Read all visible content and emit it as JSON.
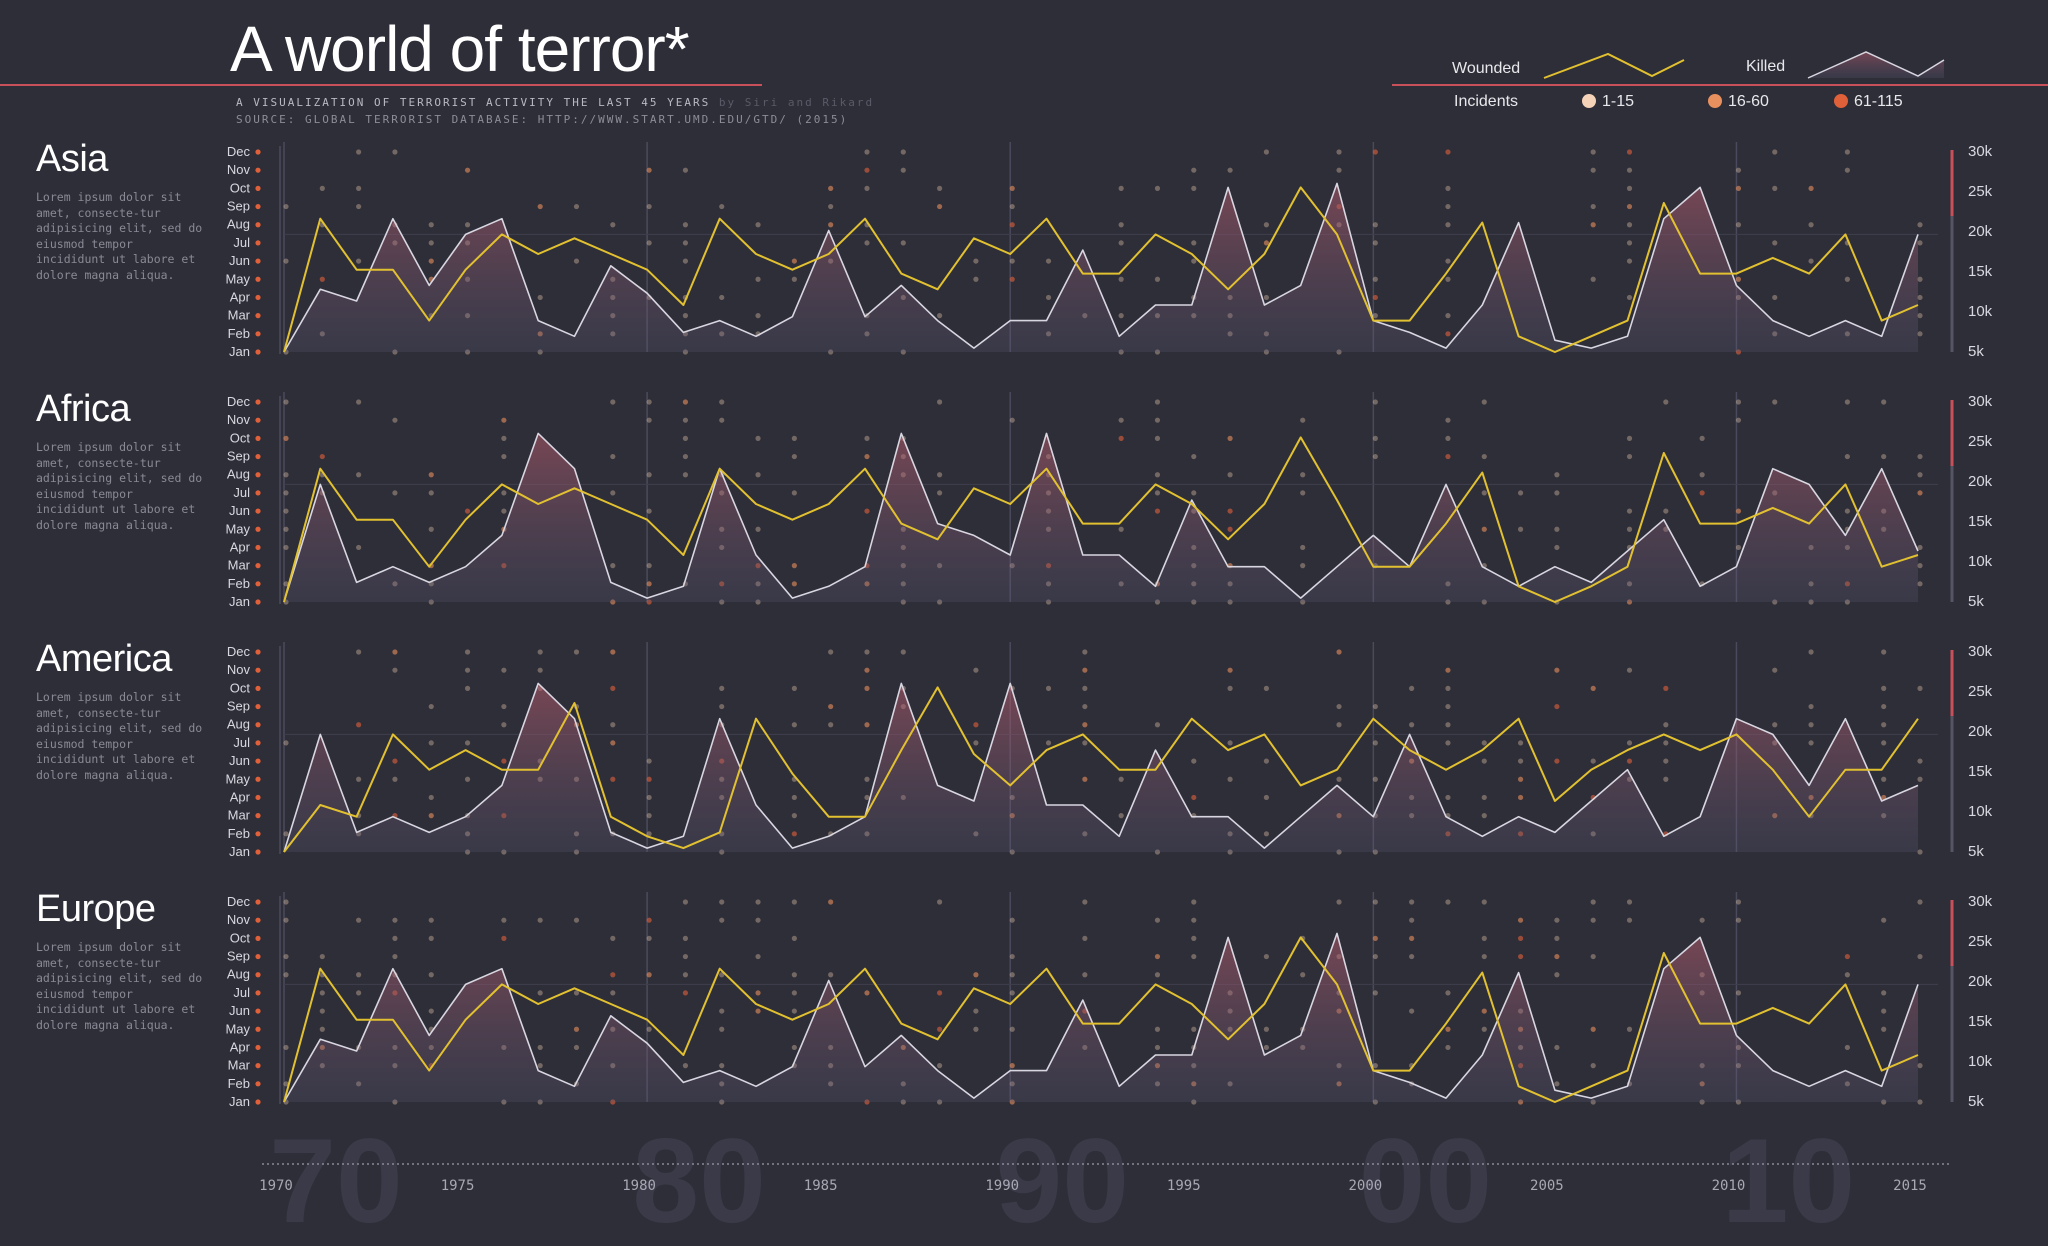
{
  "header": {
    "title": "A world of terror*",
    "subtitle": "A VISUALIZATION OF TERRORIST ACTIVITY THE LAST 45 YEARS",
    "credit": "by Siri and Rikard",
    "source": "SOURCE: GLOBAL TERRORIST DATABASE: HTTP://WWW.START.UMD.EDU/GTD/ (2015)"
  },
  "legend": {
    "wounded_label": "Wounded",
    "killed_label": "Killed",
    "incidents_label": "Incidents",
    "bins": [
      {
        "label": "1-15",
        "color": "#f5d3b8"
      },
      {
        "label": "16-60",
        "color": "#e8905e"
      },
      {
        "label": "61-115",
        "color": "#e0603a"
      }
    ]
  },
  "colors": {
    "background": "#2e2e38",
    "accent_red": "#c8505a",
    "wounded_line": "#e2c130",
    "killed_line": "#d8d6e0"
  },
  "chart_data": {
    "type": "line",
    "x_ticks": [
      1970,
      1975,
      1980,
      1985,
      1990,
      1995,
      2000,
      2005,
      2010,
      2015
    ],
    "decade_watermarks": [
      "70",
      "80",
      "90",
      "00",
      "10"
    ],
    "months": [
      "Jan",
      "Feb",
      "Mar",
      "Apr",
      "May",
      "Jun",
      "Jul",
      "Aug",
      "Sep",
      "Oct",
      "Nov",
      "Dec"
    ],
    "y_ticks": [
      "5k",
      "10k",
      "15k",
      "20k",
      "25k",
      "30k"
    ],
    "ylim": [
      5000,
      30000
    ],
    "xlim": [
      1970,
      2015
    ],
    "regions": [
      {
        "name": "Asia",
        "description": "Lorem ipsum dolor sit amet, consecte-tur adipisicing elit, sed do eiusmod tempor incididunt ut labore et dolore magna aliqua.",
        "years": [
          1970,
          1971,
          1972,
          1973,
          1974,
          1975,
          1976,
          1977,
          1978,
          1979,
          1980,
          1981,
          1982,
          1983,
          1984,
          1985,
          1986,
          1987,
          1988,
          1989,
          1990,
          1991,
          1992,
          1993,
          1994,
          1995,
          1996,
          1997,
          1998,
          1999,
          2000,
          2001,
          2002,
          2003,
          2004,
          2005,
          2006,
          2007,
          2008,
          2009,
          2010,
          2011,
          2012,
          2013,
          2014,
          2015
        ],
        "killed": [
          5000,
          13000,
          11500,
          22000,
          13500,
          20000,
          22000,
          9000,
          7000,
          16000,
          12500,
          7500,
          9000,
          7000,
          9500,
          20500,
          9500,
          13500,
          9000,
          5500,
          9000,
          9000,
          18000,
          7000,
          11000,
          11000,
          26000,
          11000,
          13500,
          26500,
          9000,
          7500,
          5500,
          11000,
          21500,
          6500,
          5500,
          7000,
          22000,
          26000,
          13500,
          9000,
          7000,
          9000,
          7000,
          20000
        ],
        "wounded": [
          5000,
          22000,
          15500,
          15500,
          9000,
          15500,
          20000,
          17500,
          19500,
          17500,
          15500,
          11000,
          22000,
          17500,
          15500,
          17500,
          22000,
          15000,
          13000,
          19500,
          17500,
          22000,
          15000,
          15000,
          20000,
          17500,
          13000,
          17500,
          26000,
          20000,
          9000,
          9000,
          15000,
          21500,
          7000,
          5000,
          7000,
          9000,
          24000,
          15000,
          15000,
          17000,
          15000,
          20000,
          9000,
          11000
        ]
      },
      {
        "name": "Africa",
        "description": "Lorem ipsum dolor sit amet, consecte-tur adipisicing elit, sed do eiusmod tempor incididunt ut labore et dolore magna aliqua.",
        "years": [
          1970,
          1971,
          1972,
          1973,
          1974,
          1975,
          1976,
          1977,
          1978,
          1979,
          1980,
          1981,
          1982,
          1983,
          1984,
          1985,
          1986,
          1987,
          1988,
          1989,
          1990,
          1991,
          1992,
          1993,
          1994,
          1995,
          1996,
          1997,
          1998,
          1999,
          2000,
          2001,
          2002,
          2003,
          2004,
          2005,
          2006,
          2007,
          2008,
          2009,
          2010,
          2011,
          2012,
          2013,
          2014,
          2015
        ],
        "killed": [
          5000,
          20000,
          7500,
          9500,
          7500,
          9500,
          13500,
          26500,
          22000,
          7500,
          5500,
          7000,
          22000,
          11000,
          5500,
          7000,
          9500,
          26500,
          15000,
          13500,
          11000,
          26500,
          11000,
          11000,
          7000,
          18000,
          9500,
          9500,
          5500,
          9500,
          13500,
          9500,
          20000,
          9500,
          7000,
          9500,
          7500,
          11500,
          15500,
          7000,
          9500,
          22000,
          20000,
          13500,
          22000,
          11500
        ],
        "wounded": [
          5000,
          22000,
          15500,
          15500,
          9500,
          15500,
          20000,
          17500,
          19500,
          17500,
          15500,
          11000,
          22000,
          17500,
          15500,
          17500,
          22000,
          15000,
          13000,
          19500,
          17500,
          22000,
          15000,
          15000,
          20000,
          17500,
          13000,
          17500,
          26000,
          18000,
          9500,
          9500,
          15000,
          21500,
          7000,
          5000,
          7000,
          9500,
          24000,
          15000,
          15000,
          17000,
          15000,
          20000,
          9500,
          11000
        ]
      },
      {
        "name": "America",
        "description": "Lorem ipsum dolor sit amet, consecte-tur adipisicing elit, sed do eiusmod tempor incididunt ut labore et dolore magna aliqua.",
        "years": [
          1970,
          1971,
          1972,
          1973,
          1974,
          1975,
          1976,
          1977,
          1978,
          1979,
          1980,
          1981,
          1982,
          1983,
          1984,
          1985,
          1986,
          1987,
          1988,
          1989,
          1990,
          1991,
          1992,
          1993,
          1994,
          1995,
          1996,
          1997,
          1998,
          1999,
          2000,
          2001,
          2002,
          2003,
          2004,
          2005,
          2006,
          2007,
          2008,
          2009,
          2010,
          2011,
          2012,
          2013,
          2014,
          2015
        ],
        "killed": [
          5000,
          20000,
          7500,
          9500,
          7500,
          9500,
          13500,
          26500,
          22000,
          7500,
          5500,
          7000,
          22000,
          11000,
          5500,
          7000,
          9500,
          26500,
          13500,
          11500,
          26500,
          11000,
          11000,
          7000,
          18000,
          9500,
          9500,
          5500,
          9500,
          13500,
          9500,
          20000,
          9500,
          7000,
          9500,
          7500,
          11500,
          15500,
          7000,
          9500,
          22000,
          20000,
          13500,
          22000,
          11500,
          13500
        ],
        "wounded": [
          5000,
          11000,
          9500,
          20000,
          15500,
          18000,
          15500,
          15500,
          24000,
          9500,
          7000,
          5500,
          7500,
          22000,
          15000,
          9500,
          9500,
          18000,
          26000,
          17500,
          13500,
          18000,
          20000,
          15500,
          15500,
          22000,
          18000,
          20000,
          13500,
          15500,
          22000,
          18000,
          15500,
          18000,
          22000,
          11500,
          15500,
          18000,
          20000,
          18000,
          20000,
          15500,
          9500,
          15500,
          15500,
          22000
        ]
      },
      {
        "name": "Europe",
        "description": "Lorem ipsum dolor sit amet, consecte-tur adipisicing elit, sed do eiusmod tempor incididunt ut labore et dolore magna aliqua.",
        "years": [
          1970,
          1971,
          1972,
          1973,
          1974,
          1975,
          1976,
          1977,
          1978,
          1979,
          1980,
          1981,
          1982,
          1983,
          1984,
          1985,
          1986,
          1987,
          1988,
          1989,
          1990,
          1991,
          1992,
          1993,
          1994,
          1995,
          1996,
          1997,
          1998,
          1999,
          2000,
          2001,
          2002,
          2003,
          2004,
          2005,
          2006,
          2007,
          2008,
          2009,
          2010,
          2011,
          2012,
          2013,
          2014,
          2015
        ],
        "killed": [
          5000,
          13000,
          11500,
          22000,
          13500,
          20000,
          22000,
          9000,
          7000,
          16000,
          12500,
          7500,
          9000,
          7000,
          9500,
          20500,
          9500,
          13500,
          9000,
          5500,
          9000,
          9000,
          18000,
          7000,
          11000,
          11000,
          26000,
          11000,
          13500,
          26500,
          9000,
          7500,
          5500,
          11000,
          21500,
          6500,
          5500,
          7000,
          22000,
          26000,
          13500,
          9000,
          7000,
          9000,
          7000,
          20000
        ],
        "wounded": [
          5000,
          22000,
          15500,
          15500,
          9000,
          15500,
          20000,
          17500,
          19500,
          17500,
          15500,
          11000,
          22000,
          17500,
          15500,
          17500,
          22000,
          15000,
          13000,
          19500,
          17500,
          22000,
          15000,
          15000,
          20000,
          17500,
          13000,
          17500,
          26000,
          20000,
          9000,
          9000,
          15000,
          21500,
          7000,
          5000,
          7000,
          9000,
          24000,
          15000,
          15000,
          17000,
          15000,
          20000,
          9000,
          11000
        ]
      }
    ]
  }
}
